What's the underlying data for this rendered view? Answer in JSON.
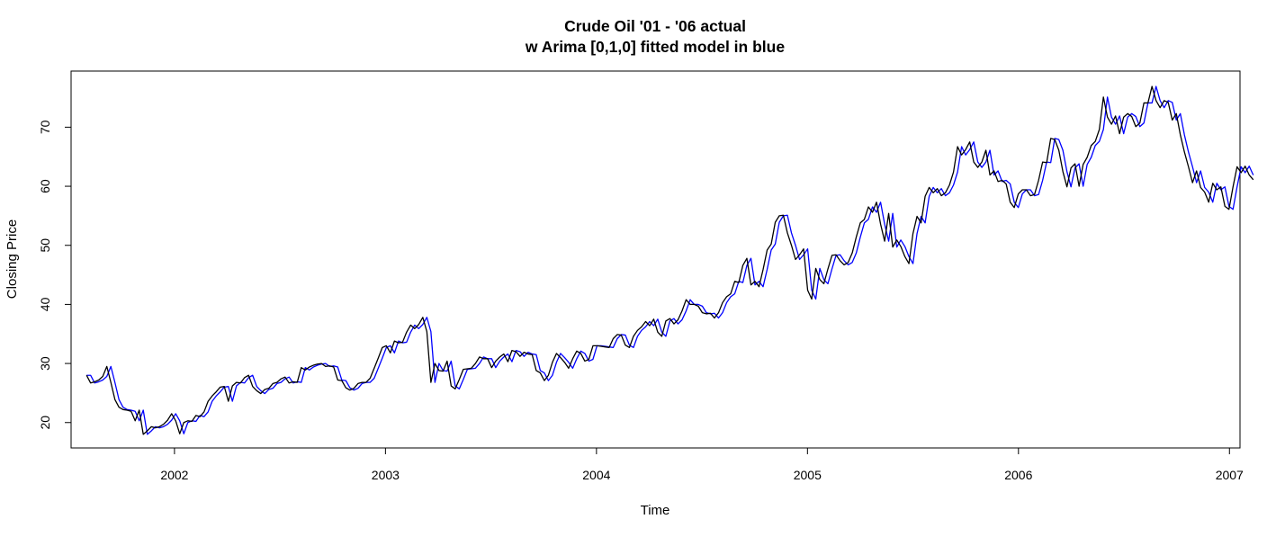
{
  "chart_data": {
    "type": "line",
    "title": "Crude Oil '01 - '06 actual",
    "subtitle": "w Arima [0,1,0] fitted model in blue",
    "xlabel": "Time",
    "ylabel": "Closing Price",
    "xlim": [
      2001.51,
      2007.05
    ],
    "ylim": [
      15.7,
      79.5
    ],
    "x_ticks": [
      2002,
      2003,
      2004,
      2005,
      2006,
      2007
    ],
    "y_ticks": [
      20,
      30,
      40,
      50,
      60,
      70
    ],
    "grid": false,
    "legend": "none",
    "x_start": 2001.5833,
    "x_step": 0.0192,
    "series": [
      {
        "name": "actual",
        "color": "#000000",
        "values": [
          28.0,
          26.7,
          26.9,
          27.2,
          27.8,
          29.5,
          26.8,
          23.9,
          22.6,
          22.2,
          22.1,
          21.9,
          20.3,
          22.1,
          18.0,
          18.6,
          19.3,
          19.1,
          19.3,
          19.7,
          20.4,
          21.5,
          20.3,
          18.1,
          20.0,
          20.3,
          20.2,
          21.2,
          21.0,
          21.8,
          23.6,
          24.5,
          25.2,
          26.0,
          26.1,
          23.6,
          26.2,
          26.8,
          26.7,
          27.6,
          28.0,
          26.1,
          25.4,
          24.9,
          25.6,
          25.8,
          26.6,
          26.8,
          27.4,
          27.7,
          26.7,
          26.9,
          26.8,
          29.3,
          28.9,
          29.4,
          29.7,
          29.9,
          30.0,
          29.5,
          29.6,
          29.4,
          27.2,
          27.1,
          25.9,
          25.5,
          25.8,
          26.6,
          26.8,
          26.8,
          27.5,
          29.2,
          30.9,
          32.7,
          33.0,
          31.8,
          33.8,
          33.5,
          33.6,
          35.3,
          36.5,
          35.9,
          36.6,
          37.8,
          35.4,
          26.8,
          30.0,
          28.8,
          28.7,
          30.4,
          26.2,
          25.7,
          27.3,
          29.0,
          29.1,
          29.2,
          30.0,
          31.1,
          30.8,
          30.8,
          29.3,
          30.4,
          31.1,
          31.6,
          30.3,
          32.2,
          32.0,
          31.2,
          31.9,
          31.6,
          31.5,
          28.8,
          28.4,
          27.1,
          28.0,
          30.2,
          31.7,
          31.0,
          30.2,
          29.2,
          30.8,
          32.1,
          31.7,
          30.4,
          30.7,
          33.0,
          33.0,
          32.9,
          32.8,
          32.7,
          34.2,
          34.9,
          34.8,
          33.1,
          32.7,
          34.6,
          35.6,
          36.2,
          37.1,
          36.4,
          37.5,
          35.3,
          34.6,
          37.2,
          37.6,
          36.7,
          37.4,
          38.9,
          40.8,
          40.0,
          40.0,
          39.7,
          38.6,
          38.4,
          38.5,
          37.7,
          38.6,
          40.3,
          41.3,
          41.8,
          43.9,
          43.7,
          46.6,
          47.8,
          43.3,
          43.9,
          43.0,
          45.9,
          49.2,
          50.2,
          53.9,
          55.0,
          55.1,
          52.1,
          50.0,
          47.6,
          48.4,
          49.4,
          42.4,
          40.9,
          46.1,
          44.2,
          43.5,
          46.0,
          48.3,
          48.4,
          47.4,
          46.7,
          47.1,
          48.7,
          51.4,
          53.8,
          54.4,
          56.5,
          55.6,
          57.3,
          53.6,
          50.7,
          55.4,
          49.7,
          50.9,
          49.8,
          48.1,
          46.9,
          52.0,
          54.9,
          53.8,
          58.3,
          59.8,
          58.9,
          59.6,
          58.4,
          58.9,
          60.2,
          62.4,
          66.7,
          65.3,
          66.2,
          67.5,
          64.1,
          63.2,
          64.1,
          66.1,
          61.9,
          62.6,
          60.8,
          61.0,
          60.4,
          57.3,
          56.4,
          58.7,
          59.4,
          59.4,
          58.4,
          58.6,
          61.0,
          64.1,
          64.0,
          68.1,
          67.9,
          66.1,
          62.5,
          59.9,
          63.1,
          63.8,
          60.0,
          63.7,
          64.9,
          66.9,
          67.6,
          69.6,
          75.1,
          71.7,
          70.5,
          71.9,
          68.9,
          71.7,
          72.3,
          71.8,
          70.1,
          70.7,
          74.1,
          74.1,
          76.9,
          74.5,
          73.3,
          74.5,
          74.2,
          71.2,
          72.3,
          68.7,
          65.8,
          63.3,
          60.6,
          62.6,
          59.8,
          59.0,
          57.3,
          60.5,
          59.4,
          59.9,
          56.6,
          56.1,
          59.9,
          63.3,
          62.3,
          63.4,
          61.9,
          61.1
        ]
      },
      {
        "name": "fitted",
        "color": "#0000ff",
        "values": [
          28.0,
          28.0,
          26.7,
          26.9,
          27.2,
          27.8,
          29.5,
          26.8,
          23.9,
          22.6,
          22.2,
          22.1,
          21.9,
          20.3,
          22.1,
          18.0,
          18.6,
          19.3,
          19.1,
          19.3,
          19.7,
          20.4,
          21.5,
          20.3,
          18.1,
          20.0,
          20.3,
          20.2,
          21.2,
          21.0,
          21.8,
          23.6,
          24.5,
          25.2,
          26.0,
          26.1,
          23.6,
          26.2,
          26.8,
          26.7,
          27.6,
          28.0,
          26.1,
          25.4,
          24.9,
          25.6,
          25.8,
          26.6,
          26.8,
          27.4,
          27.7,
          26.7,
          26.9,
          26.8,
          29.3,
          28.9,
          29.4,
          29.7,
          29.9,
          30.0,
          29.5,
          29.6,
          29.4,
          27.2,
          27.1,
          25.9,
          25.5,
          25.8,
          26.6,
          26.8,
          26.8,
          27.5,
          29.2,
          30.9,
          32.7,
          33.0,
          31.8,
          33.8,
          33.5,
          33.6,
          35.3,
          36.5,
          35.9,
          36.6,
          37.8,
          35.4,
          26.8,
          30.0,
          28.8,
          28.7,
          30.4,
          26.2,
          25.7,
          27.3,
          29.0,
          29.1,
          29.2,
          30.0,
          31.1,
          30.8,
          30.8,
          29.3,
          30.4,
          31.1,
          31.6,
          30.3,
          32.2,
          32.0,
          31.2,
          31.9,
          31.6,
          31.5,
          28.8,
          28.4,
          27.1,
          28.0,
          30.2,
          31.7,
          31.0,
          30.2,
          29.2,
          30.8,
          32.1,
          31.7,
          30.4,
          30.7,
          33.0,
          33.0,
          32.9,
          32.8,
          32.7,
          34.2,
          34.9,
          34.8,
          33.1,
          32.7,
          34.6,
          35.6,
          36.2,
          37.1,
          36.4,
          37.5,
          35.3,
          34.6,
          37.2,
          37.6,
          36.7,
          37.4,
          38.9,
          40.8,
          40.0,
          40.0,
          39.7,
          38.6,
          38.4,
          38.5,
          37.7,
          38.6,
          40.3,
          41.3,
          41.8,
          43.9,
          43.7,
          46.6,
          47.8,
          43.3,
          43.9,
          43.0,
          45.9,
          49.2,
          50.2,
          53.9,
          55.0,
          55.1,
          52.1,
          50.0,
          47.6,
          48.4,
          49.4,
          42.4,
          40.9,
          46.1,
          44.2,
          43.5,
          46.0,
          48.3,
          48.4,
          47.4,
          46.7,
          47.1,
          48.7,
          51.4,
          53.8,
          54.4,
          56.5,
          55.6,
          57.3,
          53.6,
          50.7,
          55.4,
          49.7,
          50.9,
          49.8,
          48.1,
          46.9,
          52.0,
          54.9,
          53.8,
          58.3,
          59.8,
          58.9,
          59.6,
          58.4,
          58.9,
          60.2,
          62.4,
          66.7,
          65.3,
          66.2,
          67.5,
          64.1,
          63.2,
          64.1,
          66.1,
          61.9,
          62.6,
          60.8,
          61.0,
          60.4,
          57.3,
          56.4,
          58.7,
          59.4,
          59.4,
          58.4,
          58.6,
          61.0,
          64.1,
          64.0,
          68.1,
          67.9,
          66.1,
          62.5,
          59.9,
          63.1,
          63.8,
          60.0,
          63.7,
          64.9,
          66.9,
          67.6,
          69.6,
          75.1,
          71.7,
          70.5,
          71.9,
          68.9,
          71.7,
          72.3,
          71.8,
          70.1,
          70.7,
          74.1,
          74.1,
          76.9,
          74.5,
          73.3,
          74.5,
          74.2,
          71.2,
          72.3,
          68.7,
          65.8,
          63.3,
          60.6,
          62.6,
          59.8,
          59.0,
          57.3,
          60.5,
          59.4,
          59.9,
          56.6,
          56.1,
          59.9,
          63.3,
          62.3,
          63.4,
          61.9
        ]
      }
    ]
  }
}
